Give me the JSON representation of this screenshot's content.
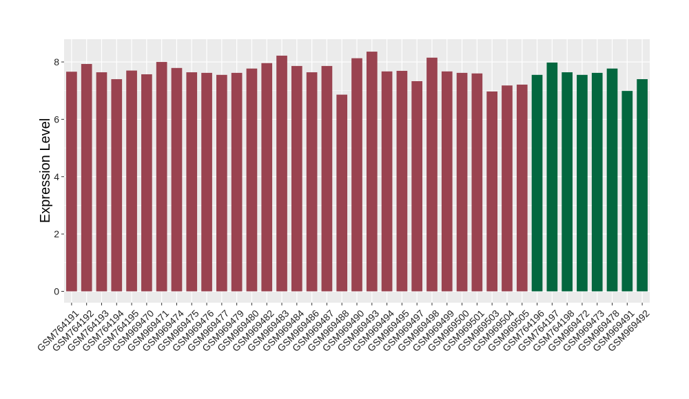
{
  "chart_data": {
    "type": "bar",
    "title": "",
    "xlabel": "",
    "ylabel": "Expression Level",
    "ylim": [
      0,
      8.6
    ],
    "yticks": [
      0,
      2,
      4,
      6,
      8
    ],
    "grid": true,
    "legend": "none",
    "colors": {
      "group_a": "#9a4350",
      "group_b": "#03673f",
      "panel": "#ebebeb",
      "gridline": "#ffffff"
    },
    "categories": [
      "GSM764191",
      "GSM764192",
      "GSM764193",
      "GSM764194",
      "GSM764195",
      "GSM969470",
      "GSM969471",
      "GSM969474",
      "GSM969475",
      "GSM969476",
      "GSM969477",
      "GSM969479",
      "GSM969480",
      "GSM969482",
      "GSM969483",
      "GSM969484",
      "GSM969486",
      "GSM969487",
      "GSM969488",
      "GSM969490",
      "GSM969493",
      "GSM969494",
      "GSM969495",
      "GSM969497",
      "GSM969498",
      "GSM969499",
      "GSM969500",
      "GSM969501",
      "GSM969503",
      "GSM969504",
      "GSM969505",
      "GSM764196",
      "GSM764197",
      "GSM764198",
      "GSM969472",
      "GSM969473",
      "GSM969478",
      "GSM969491",
      "GSM969492"
    ],
    "values": [
      7.66,
      7.93,
      7.64,
      7.4,
      7.7,
      7.57,
      8.0,
      7.79,
      7.64,
      7.62,
      7.55,
      7.62,
      7.77,
      7.96,
      8.22,
      7.86,
      7.64,
      7.86,
      6.86,
      8.13,
      8.36,
      7.67,
      7.69,
      7.33,
      8.15,
      7.67,
      7.62,
      7.6,
      6.97,
      7.18,
      7.21,
      7.55,
      7.98,
      7.64,
      7.55,
      7.62,
      7.77,
      6.99,
      7.4
    ],
    "groups": [
      "a",
      "a",
      "a",
      "a",
      "a",
      "a",
      "a",
      "a",
      "a",
      "a",
      "a",
      "a",
      "a",
      "a",
      "a",
      "a",
      "a",
      "a",
      "a",
      "a",
      "a",
      "a",
      "a",
      "a",
      "a",
      "a",
      "a",
      "a",
      "a",
      "a",
      "a",
      "b",
      "b",
      "b",
      "b",
      "b",
      "b",
      "b",
      "b"
    ]
  }
}
